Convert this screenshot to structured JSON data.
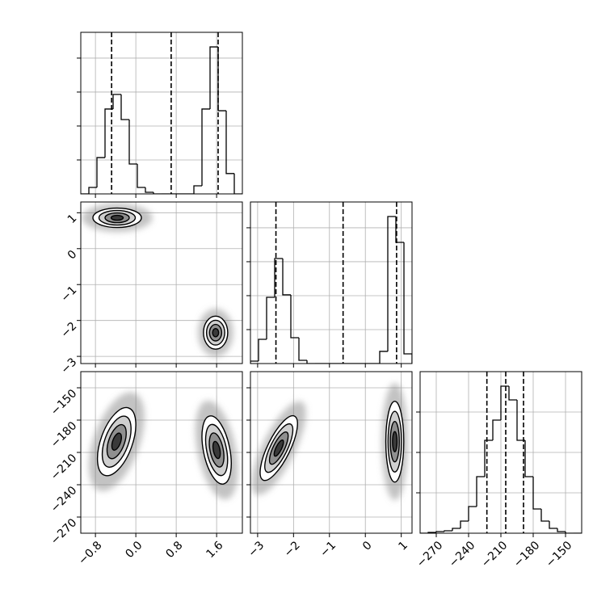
{
  "chart_data": {
    "type": "corner",
    "grid": true,
    "params": [
      {
        "lim": [
          -1.09,
          2.11
        ],
        "ticks": [
          {
            "value": -0.8,
            "label": "−0.8"
          },
          {
            "value": 0.0,
            "label": "0.0"
          },
          {
            "value": 0.8,
            "label": "0.8"
          },
          {
            "value": 1.6,
            "label": "1.6"
          }
        ]
      },
      {
        "lim": [
          -3.2,
          1.3
        ],
        "ticks": [
          {
            "value": -3,
            "label": "−3"
          },
          {
            "value": -2,
            "label": "−2"
          },
          {
            "value": -1,
            "label": "−1"
          },
          0,
          1
        ]
      },
      {
        "lim": [
          -285,
          -135
        ],
        "ticks": [
          {
            "value": -270,
            "label": "−270"
          },
          {
            "value": -240,
            "label": "−240"
          },
          {
            "value": -210,
            "label": "−210"
          },
          {
            "value": -180,
            "label": "−180"
          },
          {
            "value": -150,
            "label": "−150"
          }
        ]
      }
    ],
    "histograms": [
      {
        "bins": [
          -1.09,
          -0.93,
          -0.77,
          -0.61,
          -0.45,
          -0.29,
          -0.13,
          0.03,
          0.19,
          0.35,
          0.51,
          0.67,
          0.83,
          0.99,
          1.15,
          1.31,
          1.47,
          1.63,
          1.79,
          1.95,
          2.11
        ],
        "counts": [
          0,
          95,
          535,
          1250,
          1465,
          1095,
          440,
          95,
          24,
          0,
          0,
          0,
          0,
          0,
          119,
          1250,
          2165,
          1225,
          300,
          0
        ],
        "ylim": [
          0,
          2380
        ],
        "yticks": [
          500,
          1000,
          1500,
          2000
        ],
        "quantiles": [
          -0.48,
          0.7,
          1.63
        ]
      },
      {
        "bins": [
          -3.2,
          -2.975,
          -2.75,
          -2.525,
          -2.3,
          -2.075,
          -1.85,
          -1.625,
          -1.4,
          -1.175,
          -0.95,
          -0.725,
          -0.5,
          -0.275,
          -0.05,
          0.175,
          0.4,
          0.625,
          0.85,
          1.075,
          1.3
        ],
        "counts": [
          36,
          357,
          976,
          1547,
          1012,
          381,
          48,
          0,
          0,
          0,
          0,
          0,
          0,
          0,
          0,
          0,
          179,
          2166,
          1785,
          143
        ],
        "ylim": [
          0,
          2380
        ],
        "yticks": [
          500,
          1000,
          1500,
          2000
        ],
        "quantiles": [
          -2.49,
          -0.62,
          0.87
        ]
      },
      {
        "bins": [
          -285,
          -277.5,
          -270,
          -262.5,
          -255,
          -247.5,
          -240,
          -232.5,
          -225,
          -217.5,
          -210,
          -202.5,
          -195,
          -187.5,
          -180,
          -172.5,
          -165,
          -157.5,
          -150,
          -142.5,
          -135
        ],
        "counts": [
          0,
          20,
          40,
          60,
          120,
          300,
          660,
          1400,
          2300,
          2800,
          3640,
          3300,
          2300,
          1400,
          600,
          300,
          120,
          40,
          0,
          0
        ],
        "ylim": [
          0,
          4000
        ],
        "yticks": [
          1000,
          2000,
          3000
        ],
        "quantiles": [
          -223,
          -205.5,
          -189
        ]
      }
    ],
    "contour_levels": [
      0.5,
      1,
      1.5,
      2
    ],
    "panels": [
      {
        "x": 0,
        "y": 1,
        "blobs": [
          {
            "center": [
              -0.37,
              0.86
            ],
            "sigma": [
              0.24,
              0.135
            ],
            "rho": 0
          },
          {
            "center": [
              1.58,
              -2.34
            ],
            "sigma": [
              0.12,
              0.23
            ],
            "rho": 0
          }
        ]
      },
      {
        "x": 0,
        "y": 2,
        "blobs": [
          {
            "center": [
              -0.38,
              -200
            ],
            "sigma": [
              0.19,
              15.8
            ],
            "rho": 0.5
          },
          {
            "center": [
              1.6,
              -207.75
            ],
            "sigma": [
              0.145,
              15.8
            ],
            "rho": -0.4
          }
        ]
      },
      {
        "x": 1,
        "y": 2,
        "blobs": [
          {
            "center": [
              -2.41,
              -206
            ],
            "sigma": [
              0.26,
              15
            ],
            "rho": 0.75
          },
          {
            "center": [
              0.82,
              -200
            ],
            "sigma": [
              0.125,
              18.75
            ],
            "rho": 0
          }
        ]
      }
    ]
  }
}
